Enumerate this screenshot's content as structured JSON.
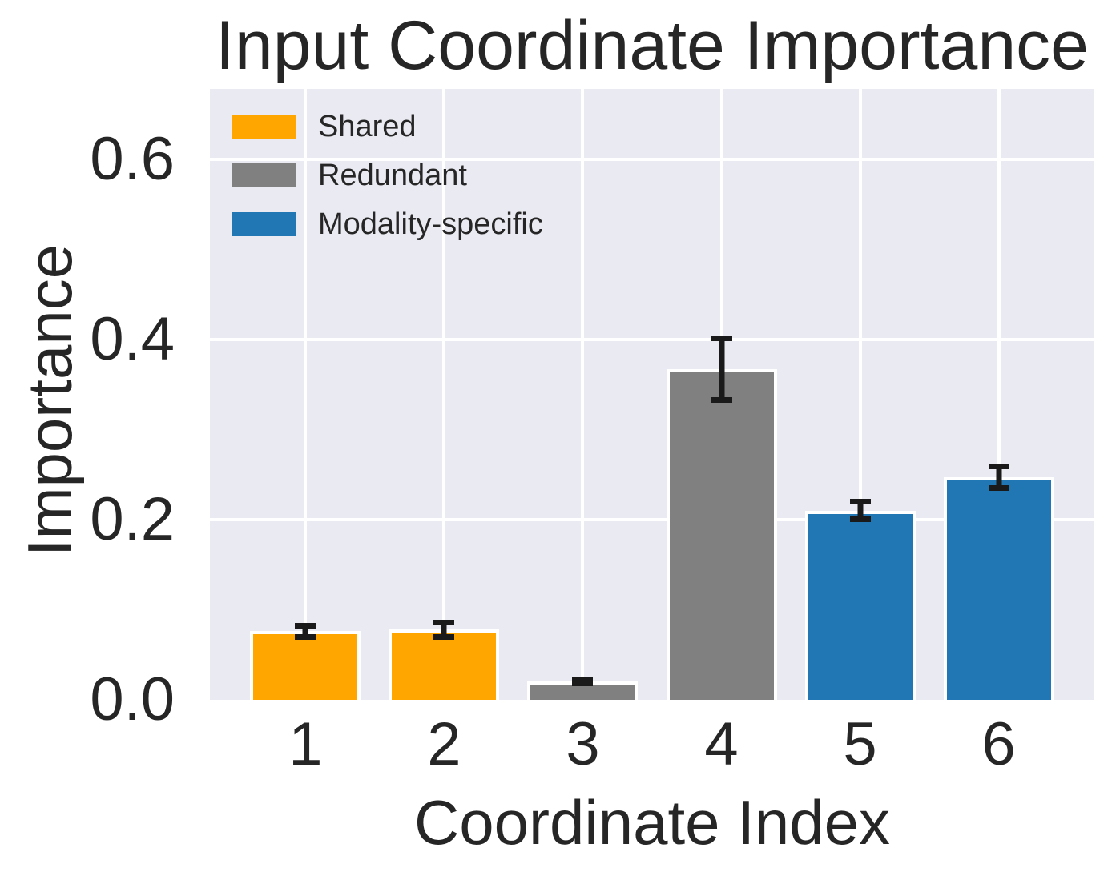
{
  "chart_data": {
    "type": "bar",
    "title": "Input Coordinate Importance",
    "xlabel": "Coordinate Index",
    "ylabel": "Importance",
    "categories": [
      "1",
      "2",
      "3",
      "4",
      "5",
      "6"
    ],
    "values": [
      0.076,
      0.078,
      0.02,
      0.367,
      0.21,
      0.247
    ],
    "errors": [
      0.009,
      0.011,
      0.0045,
      0.037,
      0.013,
      0.015
    ],
    "groups": [
      "Shared",
      "Shared",
      "Redundant",
      "Redundant",
      "Modality-specific",
      "Modality-specific"
    ],
    "legend": [
      {
        "label": "Shared",
        "color": "#FFA600"
      },
      {
        "label": "Redundant",
        "color": "#808080"
      },
      {
        "label": "Modality-specific",
        "color": "#2077B4"
      }
    ],
    "legend_position": "upper left",
    "grid": true,
    "yticks": [
      0,
      0.2,
      0.4,
      0.6
    ],
    "ytick_labels": [
      "0.0",
      "0.2",
      "0.4",
      "0.6"
    ],
    "ylim": [
      0,
      0.678
    ],
    "xlim_units": [
      -0.69,
      5.69
    ],
    "bar_width_units": 0.8,
    "colors": {
      "plot_background": "#EAEAF2",
      "figure_background": "#FFFFFF",
      "gridline": "#FFFFFF",
      "text": "#262626",
      "error_bar": "#1A1A1A",
      "bar_edge": "#FFFFFF"
    }
  }
}
